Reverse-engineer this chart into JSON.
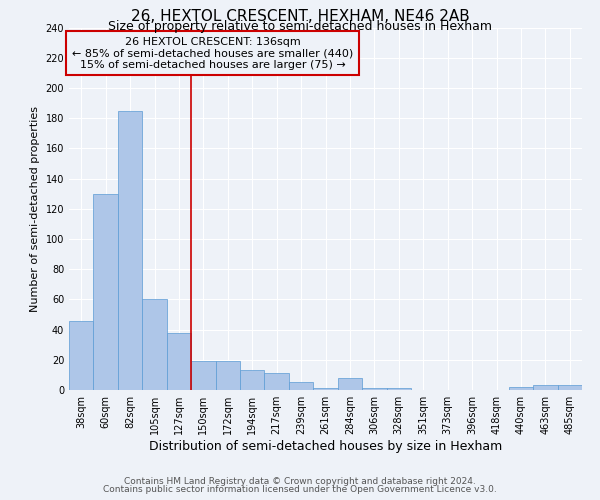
{
  "title": "26, HEXTOL CRESCENT, HEXHAM, NE46 2AB",
  "subtitle": "Size of property relative to semi-detached houses in Hexham",
  "xlabel": "Distribution of semi-detached houses by size in Hexham",
  "ylabel": "Number of semi-detached properties",
  "footnote1": "Contains HM Land Registry data © Crown copyright and database right 2024.",
  "footnote2": "Contains public sector information licensed under the Open Government Licence v3.0.",
  "bin_labels": [
    "38sqm",
    "60sqm",
    "82sqm",
    "105sqm",
    "127sqm",
    "150sqm",
    "172sqm",
    "194sqm",
    "217sqm",
    "239sqm",
    "261sqm",
    "284sqm",
    "306sqm",
    "328sqm",
    "351sqm",
    "373sqm",
    "396sqm",
    "418sqm",
    "440sqm",
    "463sqm",
    "485sqm"
  ],
  "bar_heights": [
    46,
    130,
    185,
    60,
    38,
    19,
    19,
    13,
    11,
    5,
    1,
    8,
    1,
    1,
    0,
    0,
    0,
    0,
    2,
    3,
    3
  ],
  "bar_color": "#aec6e8",
  "bar_edge_color": "#5b9bd5",
  "vline_x": 4.5,
  "vline_color": "#cc0000",
  "annotation_title": "26 HEXTOL CRESCENT: 136sqm",
  "annotation_line2": "← 85% of semi-detached houses are smaller (440)",
  "annotation_line3": "15% of semi-detached houses are larger (75) →",
  "annotation_box_color": "#cc0000",
  "ylim": [
    0,
    240
  ],
  "yticks": [
    0,
    20,
    40,
    60,
    80,
    100,
    120,
    140,
    160,
    180,
    200,
    220,
    240
  ],
  "background_color": "#eef2f8",
  "grid_color": "#ffffff",
  "title_fontsize": 11,
  "subtitle_fontsize": 9,
  "xlabel_fontsize": 9,
  "ylabel_fontsize": 8,
  "tick_fontsize": 7,
  "annotation_fontsize": 8,
  "footnote_fontsize": 6.5
}
